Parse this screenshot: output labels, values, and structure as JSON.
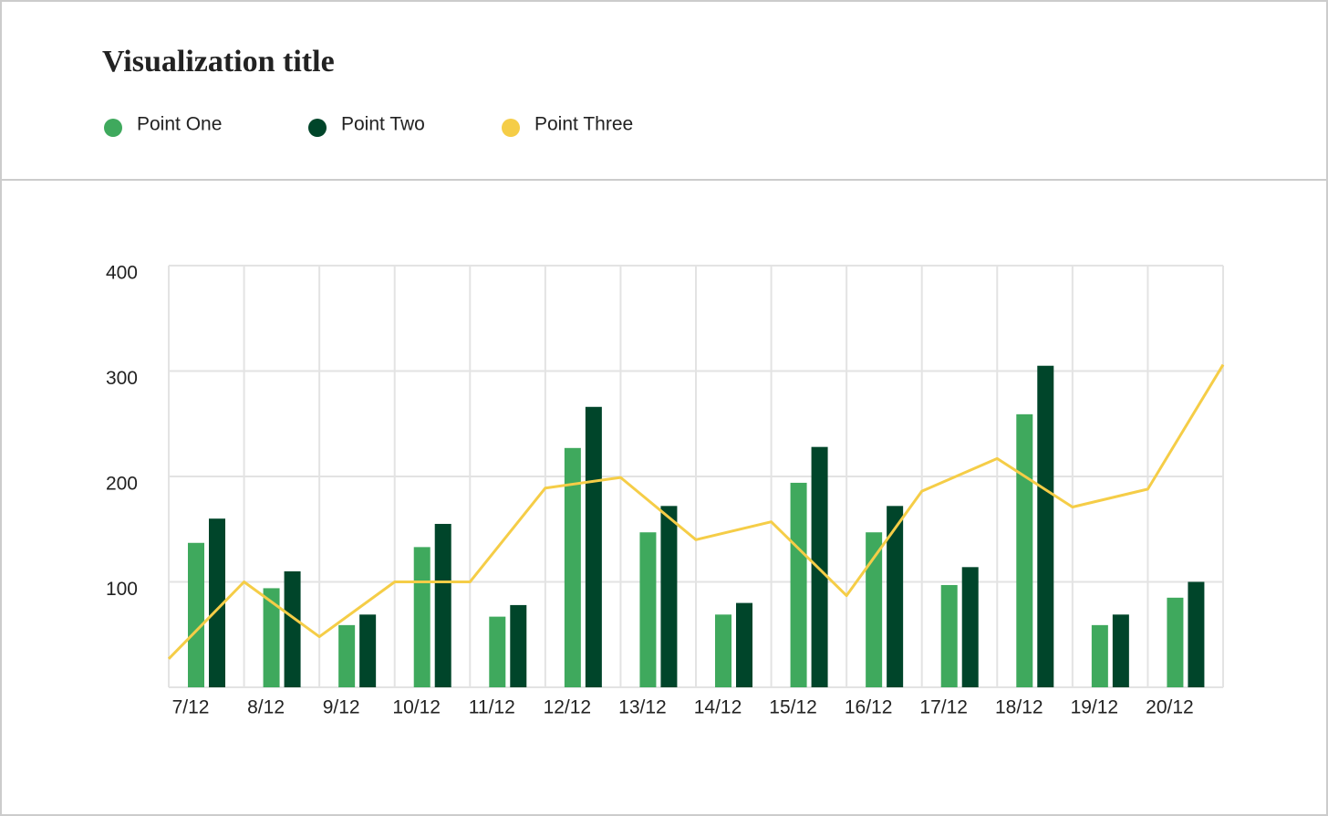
{
  "chart_data": {
    "type": "bar",
    "title": "Visualization title",
    "categories": [
      "7/12",
      "8/12",
      "9/12",
      "10/12",
      "11/12",
      "12/12",
      "13/12",
      "14/12",
      "15/12",
      "16/12",
      "17/12",
      "18/12",
      "19/12",
      "20/12",
      null
    ],
    "series": [
      {
        "name": "Point One",
        "color": "#3fa95d",
        "values": [
          137,
          94,
          59,
          133,
          67,
          227,
          147,
          69,
          194,
          147,
          97,
          259,
          59,
          85,
          null
        ]
      },
      {
        "name": "Point Two",
        "color": "#00452a",
        "values": [
          160,
          110,
          69,
          155,
          78,
          266,
          172,
          80,
          228,
          172,
          114,
          305,
          69,
          100,
          null
        ]
      },
      {
        "name": "Point Three",
        "color": "#f5cd47",
        "type": "line",
        "values": [
          27,
          100,
          48,
          100,
          100,
          189,
          199,
          140,
          157,
          87,
          186,
          217,
          171,
          188,
          306
        ]
      }
    ],
    "ylim": [
      0,
      400
    ],
    "yticks": [
      100,
      200,
      300,
      400
    ],
    "grid": true
  }
}
